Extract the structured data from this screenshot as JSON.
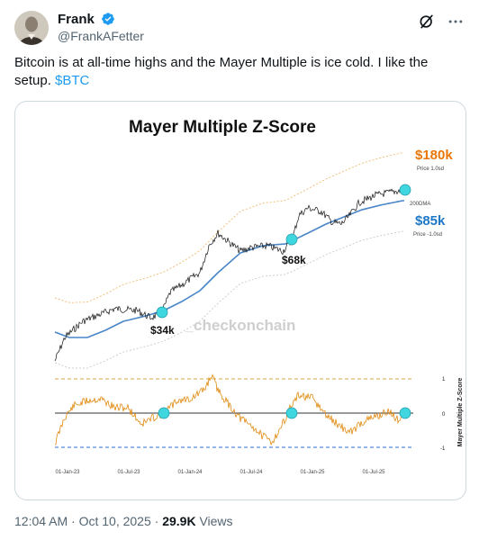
{
  "author": {
    "name": "Frank",
    "handle": "@FrankAFetter"
  },
  "tweet": {
    "text": "Bitcoin is at all-time highs and the Mayer Multiple is ice cold. I like the setup.",
    "cashtag": "$BTC"
  },
  "icons": {
    "verified": "verified-badge-icon",
    "grok": "grok-icon",
    "more": "more-icon"
  },
  "chart_data": {
    "type": "line",
    "title": "Mayer Multiple Z-Score",
    "watermark": "_checkonchain",
    "x_ticks": [
      "01-Jan-23",
      "01-Jul-23",
      "01-Jan-24",
      "01-Jul-24",
      "01-Jan-25",
      "01-Jul-25"
    ],
    "price_panel": {
      "series": [
        {
          "name": "Price",
          "color": "#111111"
        },
        {
          "name": "200DMA",
          "color": "#4a86c8"
        },
        {
          "name": "Price 1.0sd",
          "color": "#f0c07a"
        },
        {
          "name": "Price -1.0sd",
          "color": "#cfcfcf"
        }
      ],
      "labels": {
        "upper_value": "$180k",
        "upper_caption": "Price 1.0sd",
        "ma_caption": "200DMA",
        "lower_value": "$85k",
        "lower_caption": "Price -1.0sd"
      },
      "marked_points": [
        "$34k",
        "$68k"
      ],
      "upper_color": "#e8760a",
      "lower_color": "#1d78c8"
    },
    "zscore_panel": {
      "y_label": "Mayer Multiple Z-Score",
      "y_ticks": [
        "1",
        "0",
        "-1"
      ],
      "ylim": [
        -1,
        1
      ],
      "series_color": "#e08a10",
      "reference_lines": [
        {
          "value": 1,
          "color": "#d9a441",
          "style": "dashed"
        },
        {
          "value": 0,
          "color": "#333333",
          "style": "solid"
        },
        {
          "value": -1,
          "color": "#2f6ed8",
          "style": "dashed"
        }
      ]
    },
    "marker_color": "#3fd6e0"
  },
  "meta": {
    "time": "12:04 AM · Oct 10, 2025 · ",
    "views_count": "29.9K",
    "views_label": " Views"
  }
}
